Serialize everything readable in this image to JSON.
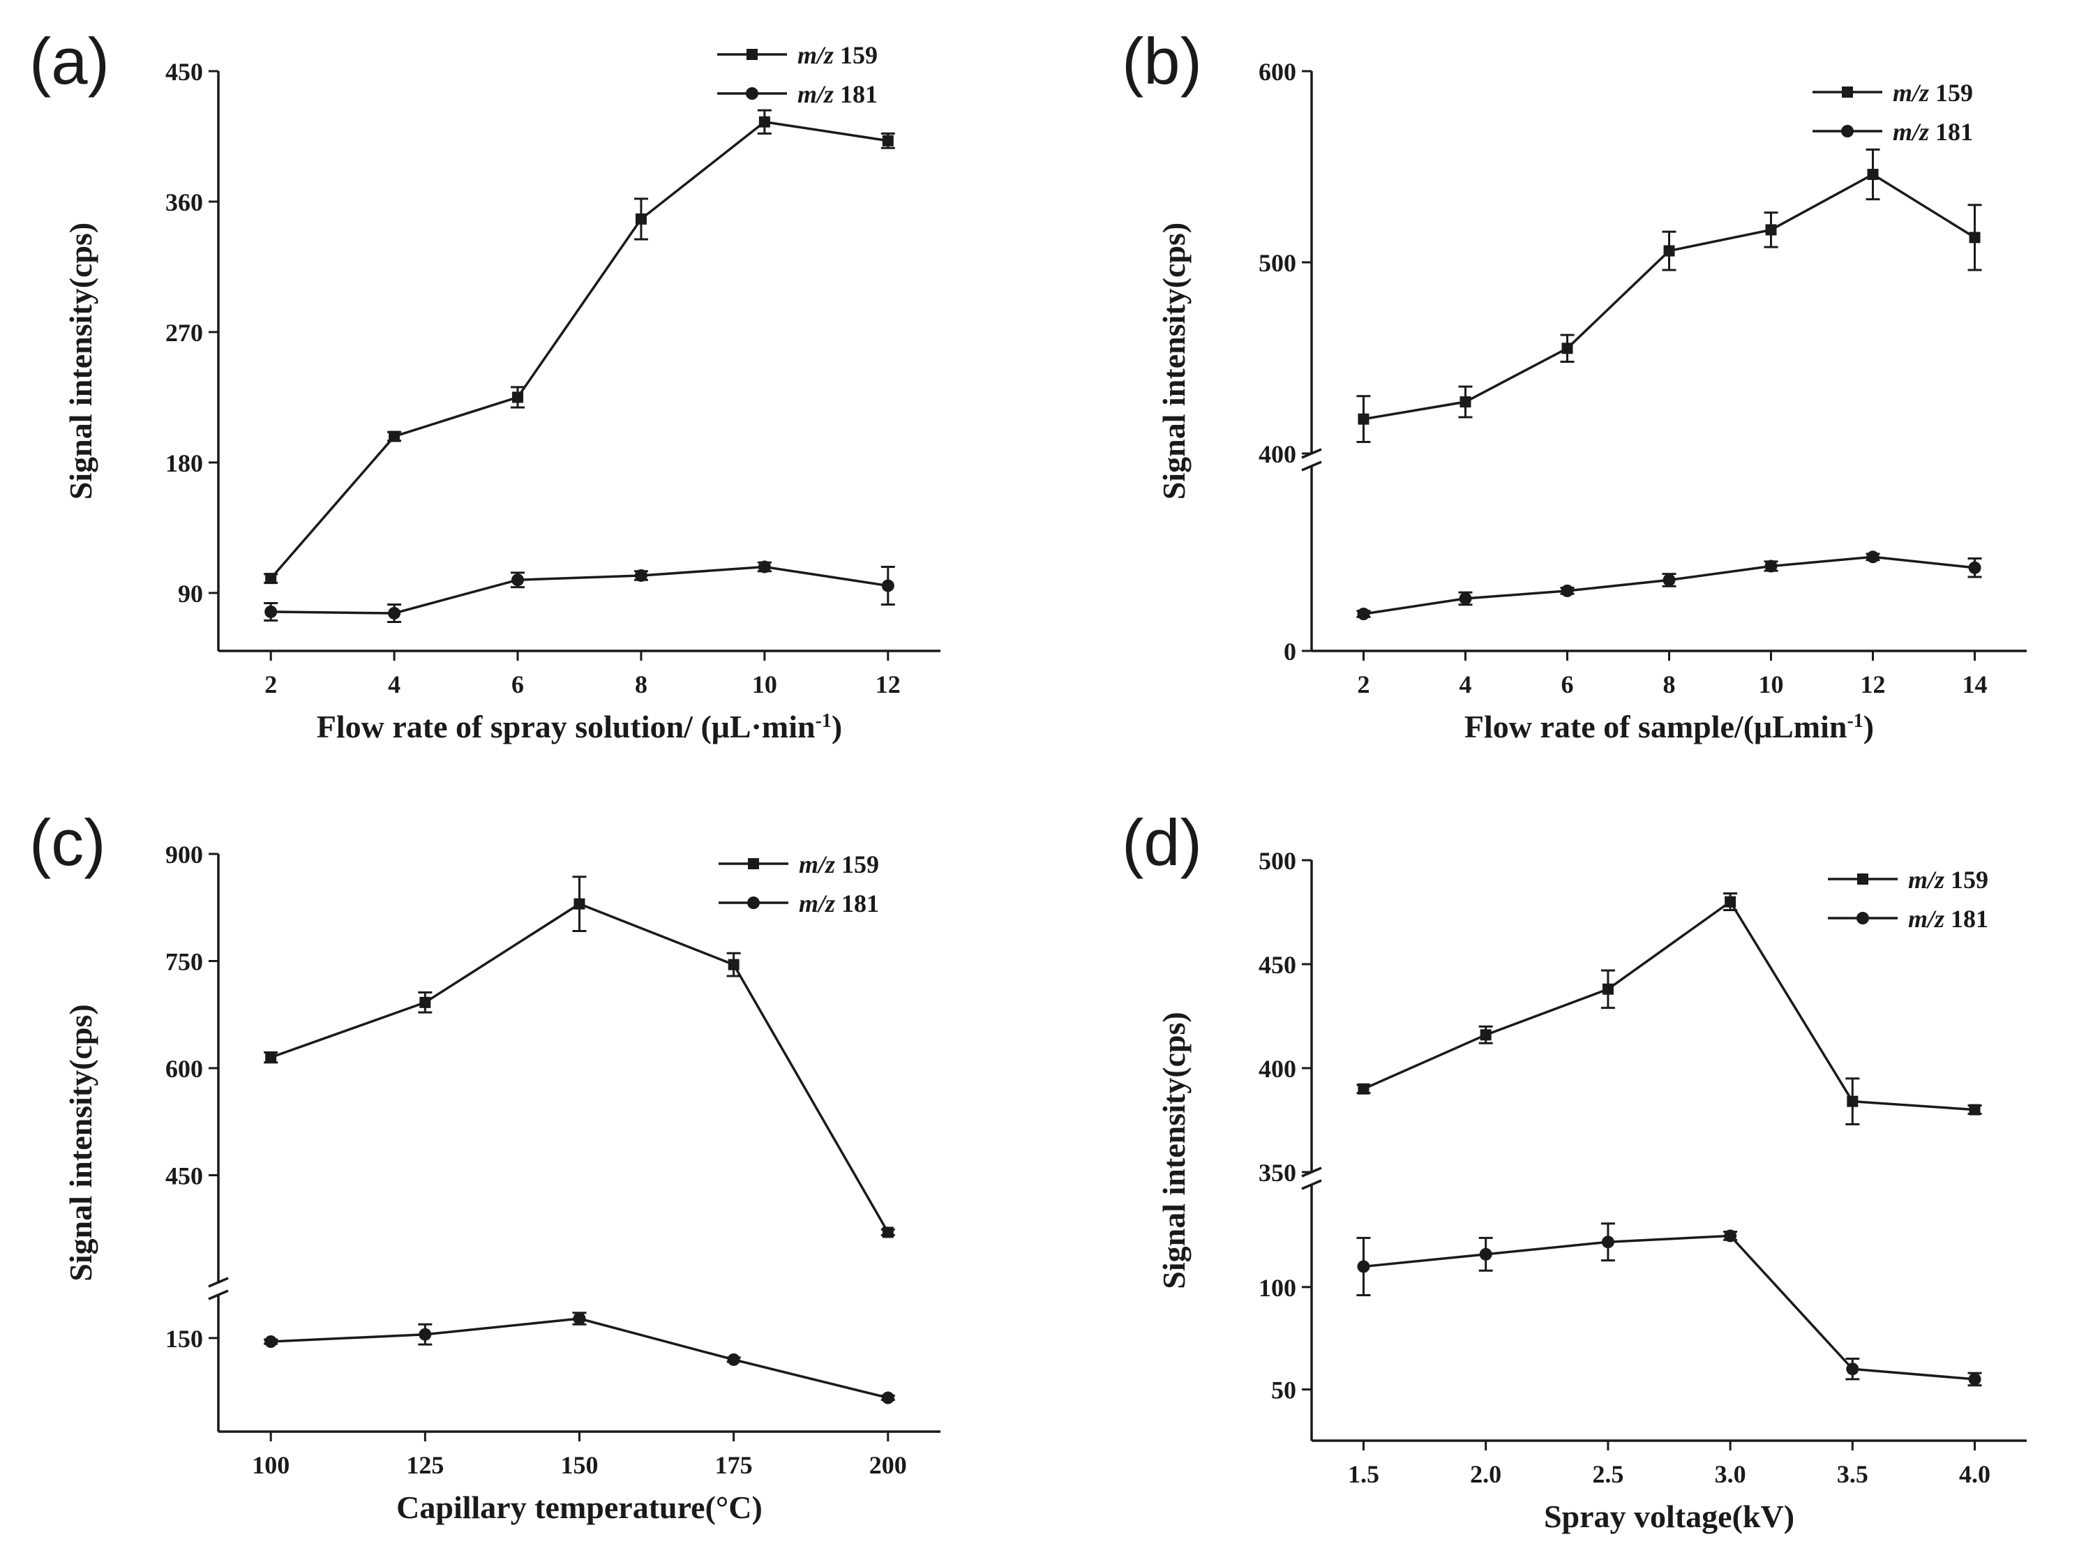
{
  "chart_data": [
    {
      "panel": "(a)",
      "type": "line",
      "xlabel": "Flow rate of spray solution/ (μL·min",
      "xlabel_sup": "-1",
      "xlabel_end": ")",
      "ylabel": "Signal intensity(cps)",
      "x": [
        2,
        4,
        6,
        8,
        10,
        12
      ],
      "xticks": [
        "2",
        "4",
        "6",
        "8",
        "10",
        "12"
      ],
      "ylim": [
        50,
        450
      ],
      "yticks": [
        "90",
        "180",
        "270",
        "360",
        "450"
      ],
      "ytick_values": [
        90,
        180,
        270,
        360,
        450
      ],
      "series": [
        {
          "name": "m/z 159",
          "legend_italic": "m/z",
          "legend_num": "159",
          "values": [
            100,
            198,
            225,
            348,
            415,
            402
          ],
          "errors": [
            3,
            3,
            7,
            14,
            8,
            5
          ]
        },
        {
          "name": "m/z 181",
          "legend_italic": "m/z",
          "legend_num": "181",
          "values": [
            77,
            76,
            99,
            102,
            108,
            95
          ],
          "errors": [
            6,
            6,
            5,
            3,
            3,
            13
          ]
        }
      ]
    },
    {
      "panel": "(b)",
      "type": "line",
      "xlabel": "Flow rate of sample/(μLmin",
      "xlabel_sup": "-1",
      "xlabel_end": ")",
      "ylabel": "Signal intensity(cps)",
      "x": [
        2,
        4,
        6,
        8,
        10,
        12,
        14
      ],
      "xticks": [
        "2",
        "4",
        "6",
        "8",
        "10",
        "12",
        "14"
      ],
      "broken_axis": true,
      "lower_ylim": [
        0,
        120
      ],
      "upper_ylim": [
        400,
        600
      ],
      "yticks": [
        "0",
        "400",
        "500",
        "600"
      ],
      "series": [
        {
          "name": "m/z 159",
          "legend_italic": "m/z",
          "legend_num": "159",
          "values": [
            418,
            427,
            455,
            506,
            517,
            546,
            513
          ],
          "errors": [
            12,
            8,
            7,
            10,
            9,
            13,
            17
          ]
        },
        {
          "name": "m/z 181",
          "legend_italic": "m/z",
          "legend_num": "181",
          "values": [
            24,
            34,
            39,
            46,
            55,
            61,
            54
          ],
          "errors": [
            2,
            4,
            2,
            4,
            3,
            2,
            6
          ]
        }
      ]
    },
    {
      "panel": "(c)",
      "type": "line",
      "xlabel": "Capillary temperature(°C)",
      "ylabel": "Signal intensity(cps)",
      "x": [
        100,
        125,
        150,
        175,
        200
      ],
      "xticks": [
        "100",
        "125",
        "150",
        "175",
        "200"
      ],
      "broken_axis": true,
      "lower_ylim": [
        20,
        210
      ],
      "upper_ylim": [
        300,
        900
      ],
      "yticks": [
        "150",
        "450",
        "600",
        "750",
        "900"
      ],
      "series": [
        {
          "name": "m/z 159",
          "legend_italic": "m/z",
          "legend_num": "159",
          "values": [
            615,
            692,
            830,
            745,
            370
          ],
          "errors": [
            7,
            14,
            38,
            16,
            4
          ]
        },
        {
          "name": "m/z 181",
          "legend_italic": "m/z",
          "legend_num": "181",
          "values": [
            145,
            155,
            177,
            120,
            67
          ],
          "errors": [
            3,
            14,
            8,
            3,
            3
          ]
        }
      ]
    },
    {
      "panel": "(d)",
      "type": "line",
      "xlabel": "Spray voltage(kV)",
      "ylabel": "Signal intensity(cps)",
      "x": [
        1.5,
        2.0,
        2.5,
        3.0,
        3.5,
        4.0
      ],
      "xticks": [
        "1.5",
        "2.0",
        "2.5",
        "3.0",
        "3.5",
        "4.0"
      ],
      "broken_axis": true,
      "lower_ylim": [
        25,
        150
      ],
      "upper_ylim": [
        350,
        500
      ],
      "yticks": [
        "50",
        "100",
        "350",
        "400",
        "450",
        "500"
      ],
      "series": [
        {
          "name": "m/z 159",
          "legend_italic": "m/z",
          "legend_num": "159",
          "values": [
            390,
            416,
            438,
            480,
            384,
            380
          ],
          "errors": [
            2,
            4,
            9,
            4,
            11,
            2
          ]
        },
        {
          "name": "m/z 181",
          "legend_italic": "m/z",
          "legend_num": "181",
          "values": [
            110,
            116,
            122,
            125,
            60,
            55
          ],
          "errors": [
            14,
            8,
            9,
            2,
            5,
            3
          ]
        }
      ]
    }
  ]
}
